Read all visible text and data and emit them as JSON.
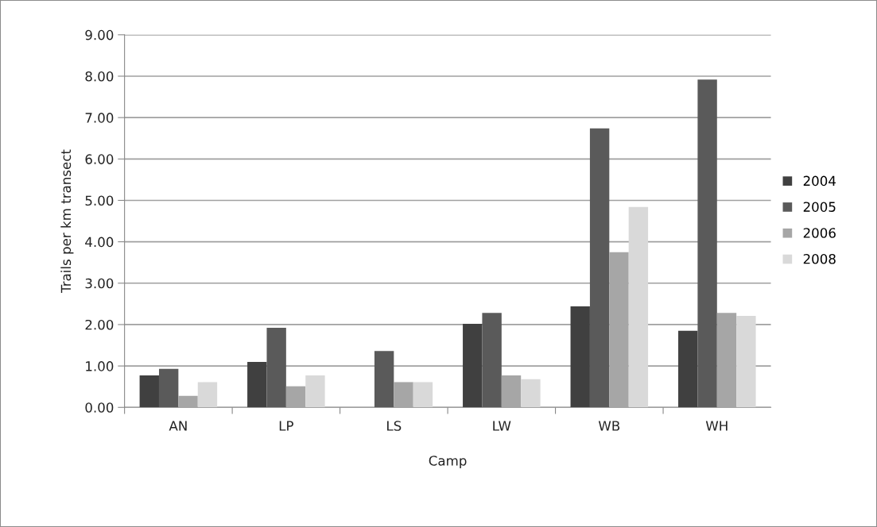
{
  "chart_data": {
    "type": "bar",
    "xlabel": "Camp",
    "ylabel": "Trails per km transect",
    "categories": [
      "AN",
      "LP",
      "LS",
      "LW",
      "WB",
      "WH"
    ],
    "series": [
      {
        "name": "2004",
        "color": "#404040",
        "values": [
          0.77,
          1.1,
          null,
          2.02,
          2.44,
          1.85
        ]
      },
      {
        "name": "2005",
        "color": "#5a5a5a",
        "values": [
          0.93,
          1.92,
          1.36,
          2.28,
          6.74,
          7.92
        ]
      },
      {
        "name": "2006",
        "color": "#a6a6a6",
        "values": [
          0.28,
          0.51,
          0.61,
          0.77,
          3.75,
          2.28
        ]
      },
      {
        "name": "2008",
        "color": "#d9d9d9",
        "values": [
          0.61,
          0.77,
          0.61,
          0.68,
          4.84,
          2.21
        ]
      }
    ],
    "ylim": [
      0,
      9
    ],
    "yticks": [
      {
        "value": 0,
        "label": "0.00"
      },
      {
        "value": 1,
        "label": "1.00"
      },
      {
        "value": 2,
        "label": "2.00"
      },
      {
        "value": 3,
        "label": "3.00"
      },
      {
        "value": 4,
        "label": "4.00"
      },
      {
        "value": 5,
        "label": "5.00"
      },
      {
        "value": 6,
        "label": "6.00"
      },
      {
        "value": 7,
        "label": "7.00"
      },
      {
        "value": 8,
        "label": "8.00"
      },
      {
        "value": 9,
        "label": "9.00"
      }
    ],
    "grid": "y",
    "legend": "right"
  }
}
